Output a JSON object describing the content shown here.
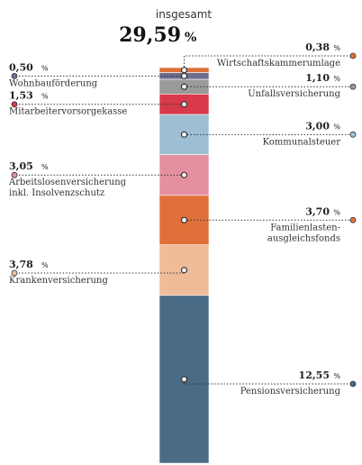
{
  "colors": {
    "orange": "#e0703a",
    "gray": "#9a9a9a",
    "purple": "#6c6f90",
    "red": "#d83a4a",
    "light_blue": "#9ebfd3",
    "pink": "#e590a0",
    "peach": "#f0bc98",
    "teal": "#4a6b86"
  },
  "chart_data": {
    "type": "bar",
    "stacked": true,
    "total_label": "insgesamt",
    "total_value": "29,59",
    "total_unit": "%",
    "unit": "%",
    "segments": [
      {
        "name": "Wirtschaftskammerumlage",
        "display": "0,38",
        "value": 0.38,
        "color": "#e0703a",
        "side": "right"
      },
      {
        "name": "Wohnbauförderung",
        "display": "0,50",
        "value": 0.5,
        "color": "#6c6f90",
        "side": "left"
      },
      {
        "name": "Unfallsversicherung",
        "display": "1,10",
        "value": 1.1,
        "color": "#9a9a9a",
        "side": "right"
      },
      {
        "name": "Mitarbeitervorsorgekasse",
        "display": "1,53",
        "value": 1.53,
        "color": "#d83a4a",
        "side": "left"
      },
      {
        "name": "Kommunalsteuer",
        "display": "3,00",
        "value": 3.0,
        "color": "#9ebfd3",
        "side": "right"
      },
      {
        "name": "Arbeitslosenversicherung inkl. Insolvenzschutz",
        "display": "3,05",
        "value": 3.05,
        "color": "#e590a0",
        "side": "left",
        "lines": [
          "Arbeitslosenversicherung",
          "inkl. Insolvenzschutz"
        ]
      },
      {
        "name": "Familienlastenausgleichsfonds",
        "display": "3,70",
        "value": 3.7,
        "color": "#e0703a",
        "side": "right",
        "lines": [
          "Familienlasten-",
          "ausgleichsfonds"
        ]
      },
      {
        "name": "Krankenversicherung",
        "display": "3,78",
        "value": 3.78,
        "color": "#f0bc98",
        "side": "left"
      },
      {
        "name": "Pensionsversicherung",
        "display": "12,55",
        "value": 12.55,
        "color": "#4a6b86",
        "side": "right"
      }
    ]
  }
}
